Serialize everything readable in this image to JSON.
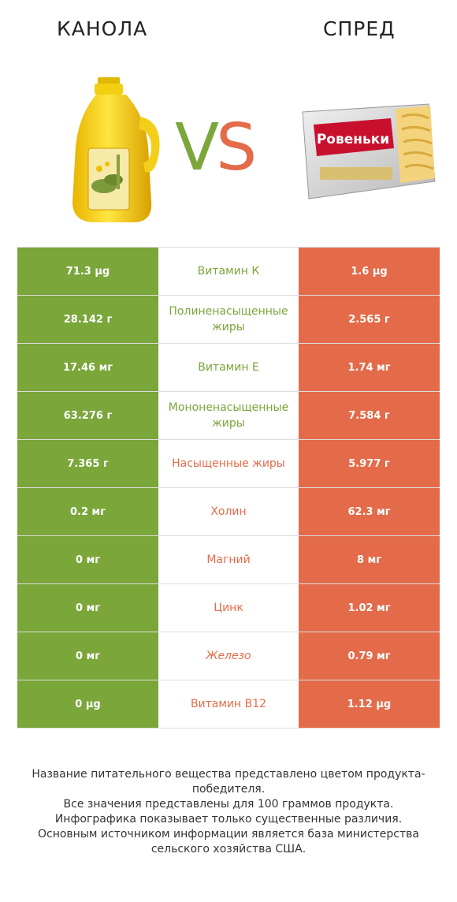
{
  "left_title": "КАНОЛА",
  "right_title": "СПРЕД",
  "vs": {
    "v": "V",
    "s": "S"
  },
  "colors": {
    "left": "#7aa63a",
    "right": "#e36b4a"
  },
  "right_product_label": "Ровеньки",
  "rows": [
    {
      "left": "71.3 µg",
      "nutrient": "Витамин К",
      "right": "1.6 µg",
      "winner": "left"
    },
    {
      "left": "28.142 г",
      "nutrient": "Полиненасыщенные жиры",
      "right": "2.565 г",
      "winner": "left"
    },
    {
      "left": "17.46 мг",
      "nutrient": "Витамин Е",
      "right": "1.74 мг",
      "winner": "left"
    },
    {
      "left": "63.276 г",
      "nutrient": "Мононенасыщенные жиры",
      "right": "7.584 г",
      "winner": "left"
    },
    {
      "left": "7.365 г",
      "nutrient": "Насыщенные жиры",
      "right": "5.977 г",
      "winner": "right"
    },
    {
      "left": "0.2 мг",
      "nutrient": "Холин",
      "right": "62.3 мг",
      "winner": "right"
    },
    {
      "left": "0 мг",
      "nutrient": "Магний",
      "right": "8 мг",
      "winner": "right"
    },
    {
      "left": "0 мг",
      "nutrient": "Цинк",
      "right": "1.02 мг",
      "winner": "right"
    },
    {
      "left": "0 мг",
      "nutrient": "Железо",
      "right": "0.79 мг",
      "winner": "right",
      "italic": true
    },
    {
      "left": "0 µg",
      "nutrient": "Витамин B12",
      "right": "1.12 µg",
      "winner": "right"
    }
  ],
  "footer": [
    "Название питательного вещества представлено цветом продукта-победителя.",
    "Все значения представлены для 100 граммов продукта.",
    "Инфографика показывает только существенные различия.",
    "Основным источником информации является база министерства сельского хозяйства США."
  ]
}
